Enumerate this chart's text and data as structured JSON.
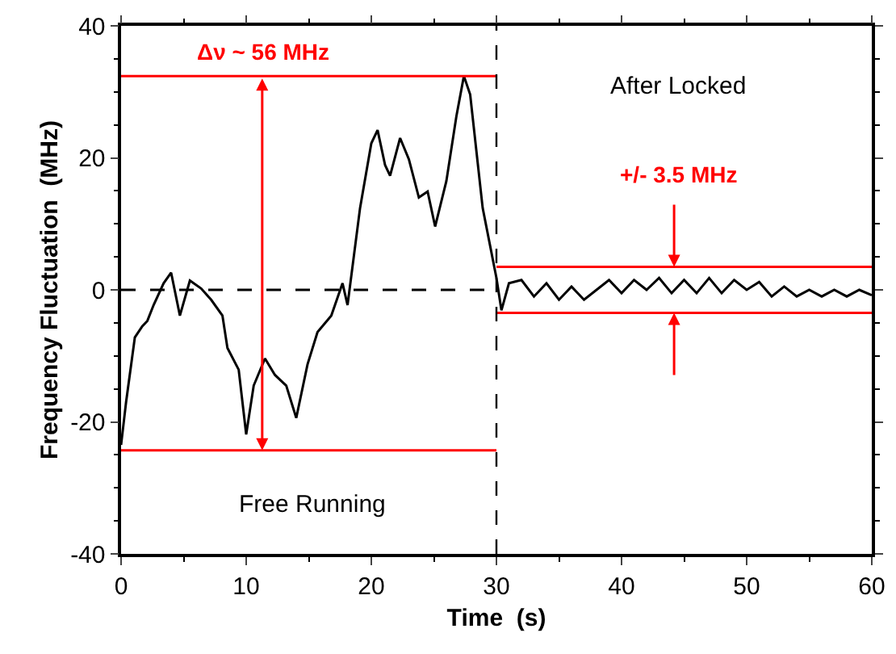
{
  "chart_data": {
    "type": "line",
    "xlabel": "Time  (s)",
    "ylabel": "Frequency Fluctuation  (MHz)",
    "xlim": [
      0,
      60
    ],
    "xticks": [
      0,
      10,
      20,
      30,
      40,
      50,
      60
    ],
    "ylim": [
      -40,
      40
    ],
    "yticks": [
      -40,
      -20,
      0,
      20,
      40
    ],
    "series": [
      {
        "color": "#000000",
        "x": [
          0,
          0.4,
          1.1,
          1.7,
          2.1,
          2.6,
          3.4,
          4.0,
          4.7,
          5.5,
          6.4,
          7.2,
          8.1,
          8.5,
          9.4,
          10,
          10.6,
          11.5,
          12.3,
          13.2,
          14,
          14.9,
          15.7,
          16.8,
          17.7,
          18.1,
          19.1,
          20,
          20.5,
          21.1,
          21.5,
          22.3,
          23,
          23.8,
          24.5,
          25.1,
          26,
          26.8,
          27.4,
          27.9,
          28.9,
          30,
          30.4,
          31,
          32,
          33,
          34,
          35,
          36,
          37,
          38,
          39,
          40,
          41,
          42,
          43,
          44,
          45,
          46,
          47,
          48,
          49,
          50,
          51,
          52,
          53,
          54,
          55,
          56,
          57,
          58,
          59,
          60
        ],
        "values": [
          -23.5,
          -17,
          -7.2,
          -5.5,
          -4.7,
          -2.3,
          1,
          2.6,
          -3.9,
          1.4,
          0.2,
          -1.5,
          -3.9,
          -8.8,
          -12.1,
          -21.9,
          -14.5,
          -10.4,
          -12.9,
          -14.5,
          -19.4,
          -11.3,
          -6.4,
          -3.9,
          1,
          -2.3,
          12.4,
          22.2,
          24.2,
          18.9,
          17.3,
          23,
          19.8,
          14,
          14.9,
          9.6,
          16.5,
          26.3,
          32.4,
          29.6,
          12.4,
          1.8,
          -3.1,
          1,
          1.5,
          -1,
          1,
          -1.5,
          0.5,
          -1.5,
          0,
          1.5,
          -0.5,
          1.5,
          0,
          1.8,
          -0.5,
          1.5,
          -0.5,
          1.8,
          -0.5,
          1.5,
          0,
          1.2,
          -1,
          0.5,
          -1,
          0,
          -1,
          0,
          -1,
          0,
          -0.8
        ]
      },
      {
        "type": "line",
        "color": "#ff0000",
        "x": [
          0,
          30
        ],
        "values": [
          32.4,
          32.4
        ]
      },
      {
        "type": "line",
        "color": "#ff0000",
        "x": [
          0,
          30
        ],
        "values": [
          -24.3,
          -24.3
        ]
      },
      {
        "type": "line",
        "color": "#ff0000",
        "x": [
          30,
          60
        ],
        "values": [
          3.5,
          3.5
        ]
      },
      {
        "type": "line",
        "color": "#ff0000",
        "x": [
          30,
          60
        ],
        "values": [
          -3.5,
          -3.5
        ]
      },
      {
        "type": "line",
        "color": "#000000",
        "line_style": "dashed",
        "x": [
          0,
          30
        ],
        "values": [
          0,
          0
        ]
      }
    ],
    "ref_lines": [
      {
        "axis": "x",
        "value": 30,
        "color": "#000000",
        "line_style": "dashed"
      }
    ],
    "annotations": [
      "Δν ~ 56 MHz",
      {
        "text": "+/- 3.5 MHz",
        "x": 44.2,
        "y": 3.5
      },
      "After Locked",
      "Free Running"
    ]
  }
}
